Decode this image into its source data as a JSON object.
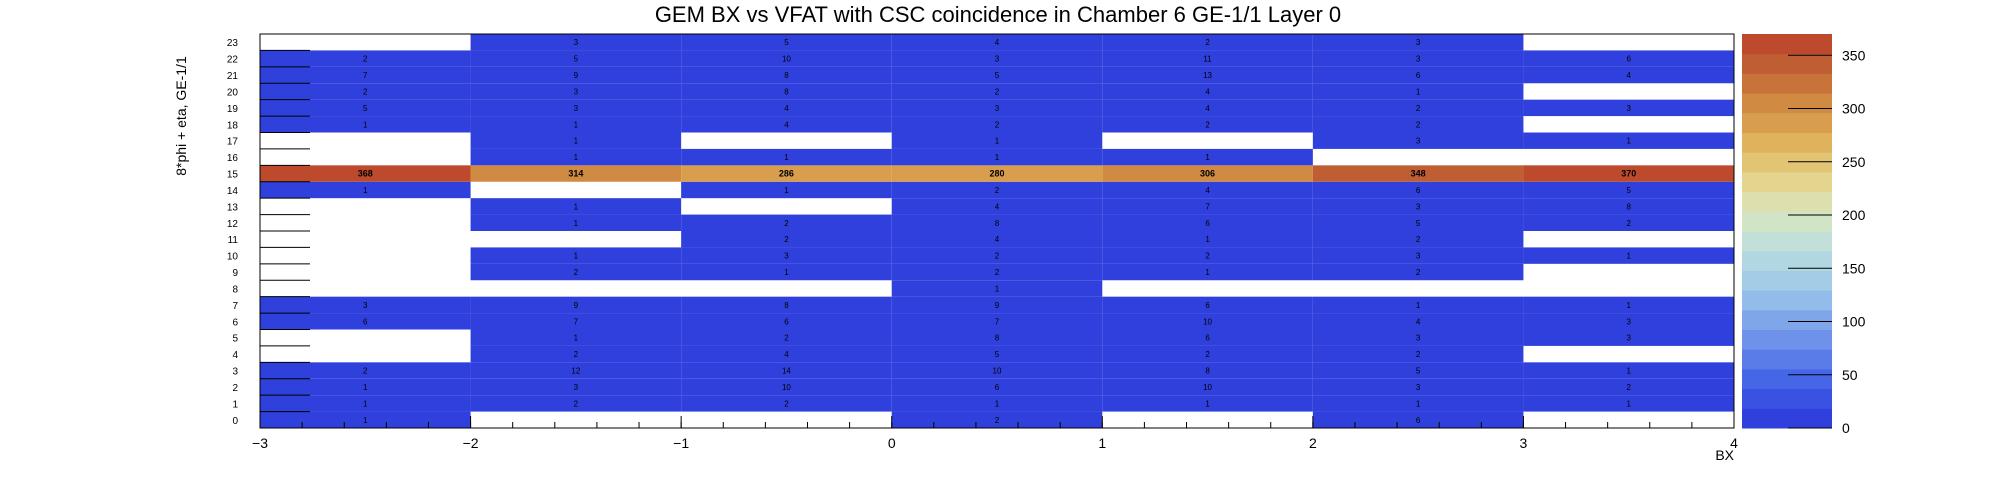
{
  "chart_data": {
    "type": "heatmap",
    "title": "GEM BX vs VFAT with CSC coincidence in Chamber 6 GE-1/1 Layer 0",
    "xlabel": "BX",
    "ylabel": "8*phi + eta, GE-1/1",
    "xlim": [
      -3,
      4
    ],
    "ylim": [
      0,
      24
    ],
    "x_ticks": [
      "−3",
      "−2",
      "−1",
      "0",
      "1",
      "2",
      "3",
      "4"
    ],
    "x_tick_values": [
      -3,
      -2,
      -1,
      0,
      1,
      2,
      3,
      4
    ],
    "y_bins": [
      0,
      1,
      2,
      3,
      4,
      5,
      6,
      7,
      8,
      9,
      10,
      11,
      12,
      13,
      14,
      15,
      16,
      17,
      18,
      19,
      20,
      21,
      22,
      23
    ],
    "x_bins": [
      {
        "low": -3,
        "high": -2
      },
      {
        "low": -2,
        "high": -1
      },
      {
        "low": -1,
        "high": 0
      },
      {
        "low": 0,
        "high": 1
      },
      {
        "low": 1,
        "high": 2
      },
      {
        "low": 2,
        "high": 3
      },
      {
        "low": 3,
        "high": 4
      }
    ],
    "cells": [
      {
        "x": 0,
        "y": 0,
        "v": 1
      },
      {
        "x": 3,
        "y": 0,
        "v": 2
      },
      {
        "x": 5,
        "y": 0,
        "v": 6
      },
      {
        "x": 0,
        "y": 1,
        "v": 1
      },
      {
        "x": 1,
        "y": 1,
        "v": 2
      },
      {
        "x": 2,
        "y": 1,
        "v": 2
      },
      {
        "x": 3,
        "y": 1,
        "v": 1
      },
      {
        "x": 4,
        "y": 1,
        "v": 1
      },
      {
        "x": 5,
        "y": 1,
        "v": 1
      },
      {
        "x": 6,
        "y": 1,
        "v": 1
      },
      {
        "x": 0,
        "y": 2,
        "v": 1
      },
      {
        "x": 1,
        "y": 2,
        "v": 3
      },
      {
        "x": 2,
        "y": 2,
        "v": 10
      },
      {
        "x": 3,
        "y": 2,
        "v": 6
      },
      {
        "x": 4,
        "y": 2,
        "v": 10
      },
      {
        "x": 5,
        "y": 2,
        "v": 3
      },
      {
        "x": 6,
        "y": 2,
        "v": 2
      },
      {
        "x": 0,
        "y": 3,
        "v": 2
      },
      {
        "x": 1,
        "y": 3,
        "v": 12
      },
      {
        "x": 2,
        "y": 3,
        "v": 14
      },
      {
        "x": 3,
        "y": 3,
        "v": 10
      },
      {
        "x": 4,
        "y": 3,
        "v": 8
      },
      {
        "x": 5,
        "y": 3,
        "v": 5
      },
      {
        "x": 6,
        "y": 3,
        "v": 1
      },
      {
        "x": 1,
        "y": 4,
        "v": 2
      },
      {
        "x": 2,
        "y": 4,
        "v": 4
      },
      {
        "x": 3,
        "y": 4,
        "v": 5
      },
      {
        "x": 4,
        "y": 4,
        "v": 2
      },
      {
        "x": 5,
        "y": 4,
        "v": 2
      },
      {
        "x": 1,
        "y": 5,
        "v": 1
      },
      {
        "x": 2,
        "y": 5,
        "v": 2
      },
      {
        "x": 3,
        "y": 5,
        "v": 8
      },
      {
        "x": 4,
        "y": 5,
        "v": 6
      },
      {
        "x": 5,
        "y": 5,
        "v": 3
      },
      {
        "x": 6,
        "y": 5,
        "v": 3
      },
      {
        "x": 0,
        "y": 6,
        "v": 6
      },
      {
        "x": 1,
        "y": 6,
        "v": 7
      },
      {
        "x": 2,
        "y": 6,
        "v": 6
      },
      {
        "x": 3,
        "y": 6,
        "v": 7
      },
      {
        "x": 4,
        "y": 6,
        "v": 10
      },
      {
        "x": 5,
        "y": 6,
        "v": 4
      },
      {
        "x": 6,
        "y": 6,
        "v": 3
      },
      {
        "x": 0,
        "y": 7,
        "v": 3
      },
      {
        "x": 1,
        "y": 7,
        "v": 9
      },
      {
        "x": 2,
        "y": 7,
        "v": 8
      },
      {
        "x": 3,
        "y": 7,
        "v": 9
      },
      {
        "x": 4,
        "y": 7,
        "v": 6
      },
      {
        "x": 5,
        "y": 7,
        "v": 1
      },
      {
        "x": 6,
        "y": 7,
        "v": 1
      },
      {
        "x": 3,
        "y": 8,
        "v": 1
      },
      {
        "x": 1,
        "y": 9,
        "v": 2
      },
      {
        "x": 2,
        "y": 9,
        "v": 1
      },
      {
        "x": 3,
        "y": 9,
        "v": 2
      },
      {
        "x": 4,
        "y": 9,
        "v": 1
      },
      {
        "x": 5,
        "y": 9,
        "v": 2
      },
      {
        "x": 1,
        "y": 10,
        "v": 1
      },
      {
        "x": 2,
        "y": 10,
        "v": 3
      },
      {
        "x": 3,
        "y": 10,
        "v": 2
      },
      {
        "x": 4,
        "y": 10,
        "v": 2
      },
      {
        "x": 5,
        "y": 10,
        "v": 3
      },
      {
        "x": 6,
        "y": 10,
        "v": 1
      },
      {
        "x": 2,
        "y": 11,
        "v": 2
      },
      {
        "x": 3,
        "y": 11,
        "v": 4
      },
      {
        "x": 4,
        "y": 11,
        "v": 1
      },
      {
        "x": 5,
        "y": 11,
        "v": 2
      },
      {
        "x": 1,
        "y": 12,
        "v": 1
      },
      {
        "x": 2,
        "y": 12,
        "v": 2
      },
      {
        "x": 3,
        "y": 12,
        "v": 8
      },
      {
        "x": 4,
        "y": 12,
        "v": 6
      },
      {
        "x": 5,
        "y": 12,
        "v": 5
      },
      {
        "x": 6,
        "y": 12,
        "v": 2
      },
      {
        "x": 1,
        "y": 13,
        "v": 1
      },
      {
        "x": 3,
        "y": 13,
        "v": 4
      },
      {
        "x": 4,
        "y": 13,
        "v": 7
      },
      {
        "x": 5,
        "y": 13,
        "v": 3
      },
      {
        "x": 6,
        "y": 13,
        "v": 8
      },
      {
        "x": 0,
        "y": 14,
        "v": 1
      },
      {
        "x": 2,
        "y": 14,
        "v": 1
      },
      {
        "x": 3,
        "y": 14,
        "v": 2
      },
      {
        "x": 4,
        "y": 14,
        "v": 4
      },
      {
        "x": 5,
        "y": 14,
        "v": 6
      },
      {
        "x": 6,
        "y": 14,
        "v": 5
      },
      {
        "x": 0,
        "y": 15,
        "v": 368
      },
      {
        "x": 1,
        "y": 15,
        "v": 314
      },
      {
        "x": 2,
        "y": 15,
        "v": 286
      },
      {
        "x": 3,
        "y": 15,
        "v": 280
      },
      {
        "x": 4,
        "y": 15,
        "v": 306
      },
      {
        "x": 5,
        "y": 15,
        "v": 348
      },
      {
        "x": 6,
        "y": 15,
        "v": 370
      },
      {
        "x": 1,
        "y": 16,
        "v": 1
      },
      {
        "x": 2,
        "y": 16,
        "v": 1
      },
      {
        "x": 3,
        "y": 16,
        "v": 1
      },
      {
        "x": 4,
        "y": 16,
        "v": 1
      },
      {
        "x": 1,
        "y": 17,
        "v": 1
      },
      {
        "x": 3,
        "y": 17,
        "v": 1
      },
      {
        "x": 5,
        "y": 17,
        "v": 3
      },
      {
        "x": 6,
        "y": 17,
        "v": 1
      },
      {
        "x": 0,
        "y": 18,
        "v": 1
      },
      {
        "x": 1,
        "y": 18,
        "v": 1
      },
      {
        "x": 2,
        "y": 18,
        "v": 4
      },
      {
        "x": 3,
        "y": 18,
        "v": 2
      },
      {
        "x": 4,
        "y": 18,
        "v": 2
      },
      {
        "x": 5,
        "y": 18,
        "v": 2
      },
      {
        "x": 0,
        "y": 19,
        "v": 5
      },
      {
        "x": 1,
        "y": 19,
        "v": 3
      },
      {
        "x": 2,
        "y": 19,
        "v": 4
      },
      {
        "x": 3,
        "y": 19,
        "v": 3
      },
      {
        "x": 4,
        "y": 19,
        "v": 4
      },
      {
        "x": 5,
        "y": 19,
        "v": 2
      },
      {
        "x": 6,
        "y": 19,
        "v": 3
      },
      {
        "x": 0,
        "y": 20,
        "v": 2
      },
      {
        "x": 1,
        "y": 20,
        "v": 3
      },
      {
        "x": 2,
        "y": 20,
        "v": 8
      },
      {
        "x": 3,
        "y": 20,
        "v": 2
      },
      {
        "x": 4,
        "y": 20,
        "v": 4
      },
      {
        "x": 5,
        "y": 20,
        "v": 1
      },
      {
        "x": 0,
        "y": 21,
        "v": 7
      },
      {
        "x": 1,
        "y": 21,
        "v": 9
      },
      {
        "x": 2,
        "y": 21,
        "v": 8
      },
      {
        "x": 3,
        "y": 21,
        "v": 5
      },
      {
        "x": 4,
        "y": 21,
        "v": 13
      },
      {
        "x": 5,
        "y": 21,
        "v": 6
      },
      {
        "x": 6,
        "y": 21,
        "v": 4
      },
      {
        "x": 0,
        "y": 22,
        "v": 2
      },
      {
        "x": 1,
        "y": 22,
        "v": 5
      },
      {
        "x": 2,
        "y": 22,
        "v": 10
      },
      {
        "x": 3,
        "y": 22,
        "v": 3
      },
      {
        "x": 4,
        "y": 22,
        "v": 11
      },
      {
        "x": 5,
        "y": 22,
        "v": 3
      },
      {
        "x": 6,
        "y": 22,
        "v": 6
      },
      {
        "x": 1,
        "y": 23,
        "v": 3
      },
      {
        "x": 2,
        "y": 23,
        "v": 5
      },
      {
        "x": 3,
        "y": 23,
        "v": 4
      },
      {
        "x": 4,
        "y": 23,
        "v": 2
      },
      {
        "x": 5,
        "y": 23,
        "v": 3
      }
    ],
    "z_range": [
      0,
      370
    ],
    "colorbar_ticks": [
      "0",
      "50",
      "100",
      "150",
      "200",
      "250",
      "300",
      "350"
    ],
    "colorbar_tick_values": [
      0,
      50,
      100,
      150,
      200,
      250,
      300,
      350
    ],
    "palette": [
      "#3040dd",
      "#3a52e3",
      "#4566e6",
      "#5a7ce8",
      "#6e92ea",
      "#80a6ea",
      "#93bcea",
      "#a3cce6",
      "#b1d8e2",
      "#c2e0d8",
      "#d1e4c6",
      "#dde0ae",
      "#e3d58e",
      "#e2c574",
      "#dfb25c",
      "#d99e4d",
      "#d08a42",
      "#c8733a",
      "#c05e33",
      "#bd4a2c"
    ],
    "empty_color": "#ffffff"
  }
}
